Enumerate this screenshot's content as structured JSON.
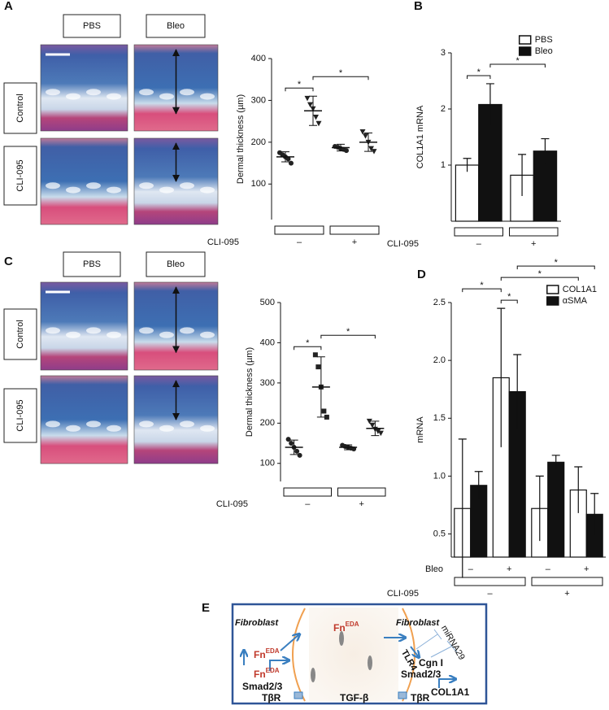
{
  "panels": [
    {
      "label": "A",
      "columns": [
        "PBS",
        "Bleo"
      ],
      "rows": [
        "Control",
        "CLI-095"
      ]
    },
    {
      "label": "C",
      "columns": [
        "PBS",
        "Bleo"
      ],
      "rows": [
        "Control",
        "CLI-095"
      ]
    }
  ],
  "chart_data": [
    {
      "type": "dot",
      "ylabel": "Dermal thickness (µm)",
      "ylim": [
        15,
        400
      ],
      "yticks": [
        100,
        200,
        300,
        400
      ],
      "points": [
        [
          175,
          170,
          165,
          160,
          150
        ],
        [
          305,
          290,
          280,
          260,
          245
        ],
        [
          190,
          188,
          185,
          183,
          180
        ],
        [
          225,
          215,
          200,
          185,
          178
        ]
      ],
      "means": [
        165,
        275,
        187,
        200
      ],
      "sd": [
        12,
        35,
        8,
        22
      ],
      "markers": [
        "circle",
        "triangle-down",
        "circle",
        "triangle-down"
      ],
      "color": "#222222",
      "group_label": "CLI-095",
      "groups": [
        "–",
        "+"
      ],
      "brackets": [
        {
          "label": "*",
          "from": 0,
          "to": 1
        },
        {
          "label": "*",
          "from": 1,
          "to": 3
        }
      ]
    },
    {
      "type": "bar",
      "panel": "B",
      "ylabel": "COL1A1 mRNA",
      "ylim": [
        0,
        3
      ],
      "yticks": [
        1,
        2,
        3
      ],
      "legend": "top-right",
      "series": [
        {
          "name": "PBS",
          "color": "#ffffff",
          "values": [
            1.0,
            0.82
          ],
          "errors": [
            0.12,
            0.37
          ]
        },
        {
          "name": "Bleo",
          "color": "#111111",
          "values": [
            2.08,
            1.25
          ],
          "errors": [
            0.37,
            0.22
          ]
        }
      ],
      "group_label": "CLI-095",
      "groups": [
        "–",
        "+"
      ],
      "brackets": [
        {
          "label": "*",
          "from": 0,
          "to": 1
        },
        {
          "label": "*",
          "from": 1,
          "to": 3
        }
      ]
    },
    {
      "type": "dot",
      "ylabel": "Dermal thickness (µm)",
      "ylim": [
        55,
        500
      ],
      "yticks": [
        100,
        200,
        300,
        400,
        500
      ],
      "points": [
        [
          160,
          150,
          140,
          130,
          120
        ],
        [
          370,
          340,
          290,
          230,
          215
        ],
        [
          145,
          142,
          140,
          138,
          136
        ],
        [
          205,
          195,
          185,
          180,
          175
        ]
      ],
      "means": [
        140,
        290,
        140,
        187
      ],
      "sd": [
        18,
        75,
        6,
        18
      ],
      "markers": [
        "circle",
        "square",
        "circle",
        "triangle-down"
      ],
      "color": "#222222",
      "group_label": "CLI-095",
      "groups": [
        "–",
        "+"
      ],
      "brackets": [
        {
          "label": "*",
          "from": 0,
          "to": 1
        },
        {
          "label": "*",
          "from": 1,
          "to": 3
        }
      ]
    },
    {
      "type": "bar",
      "panel": "D",
      "ylabel": "mRNA",
      "ylim": [
        0.3,
        2.5
      ],
      "yticks": [
        0.5,
        {
          "value": 1,
          "label": "1.0"
        },
        1.5,
        {
          "value": 2,
          "label": "2.0"
        },
        2.5
      ],
      "legend": "top-right",
      "series": [
        {
          "name": "COL1A1",
          "color": "#ffffff",
          "values": [
            0.72,
            1.85,
            0.72,
            0.88
          ],
          "errors": [
            0.6,
            0.6,
            0.28,
            0.2
          ]
        },
        {
          "name": "αSMA",
          "color": "#111111",
          "values": [
            0.92,
            1.73,
            1.12,
            0.67
          ],
          "errors": [
            0.12,
            0.32,
            0.06,
            0.18
          ]
        }
      ],
      "category_label": "Bleo",
      "categories": [
        "–",
        "+",
        "–",
        "+"
      ],
      "group_label": "CLI-095",
      "groups": [
        "–",
        "+"
      ],
      "brackets": [
        {
          "label": "*",
          "from": 2,
          "to": 3
        },
        {
          "label": "*",
          "from": 0,
          "to": 2
        },
        {
          "label": "*",
          "from": 2,
          "to": 6
        },
        {
          "label": "*",
          "from": 3,
          "to": 7
        }
      ]
    }
  ],
  "diagram": {
    "label": "E",
    "cells": [
      "Fibroblast",
      "Fibroblast"
    ],
    "labels": [
      {
        "text": "Fn",
        "sup": "EDA"
      },
      {
        "text": "Fn",
        "sup": "EDA"
      },
      {
        "text": "Fn",
        "sup": "EDA"
      },
      {
        "text": "TLR4"
      },
      {
        "text": "miRNA29"
      },
      {
        "text": "Cgn I"
      },
      {
        "text": "Smad2/3"
      },
      {
        "text": "Smad2/3"
      },
      {
        "text": "COL1A1"
      },
      {
        "text": "TβR"
      },
      {
        "text": "TβR"
      },
      {
        "text": "TGF-β"
      }
    ]
  }
}
